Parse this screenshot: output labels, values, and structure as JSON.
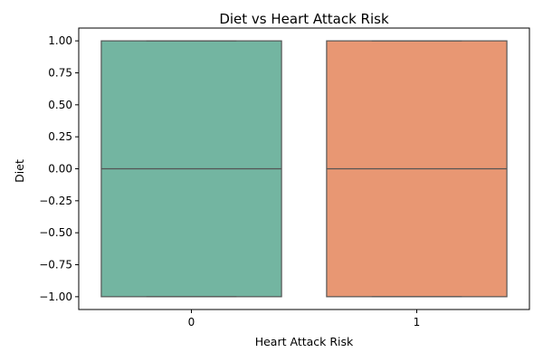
{
  "chart_data": {
    "type": "box",
    "title": "Diet vs Heart Attack Risk",
    "xlabel": "Heart Attack Risk",
    "ylabel": "Diet",
    "categories": [
      "0",
      "1"
    ],
    "ylim": [
      -1.1,
      1.1
    ],
    "yticks": [
      -1.0,
      -0.75,
      -0.5,
      -0.25,
      0.0,
      0.25,
      0.5,
      0.75,
      1.0
    ],
    "ytick_labels": [
      "−1.00",
      "−0.75",
      "−0.50",
      "−0.25",
      "0.00",
      "0.25",
      "0.50",
      "0.75",
      "1.00"
    ],
    "boxes": [
      {
        "category": "0",
        "min": -1.0,
        "q1": -1.0,
        "median": 0.0,
        "q3": 1.0,
        "max": 1.0,
        "color": "#73b5a1"
      },
      {
        "category": "1",
        "min": -1.0,
        "q1": -1.0,
        "median": 0.0,
        "q3": 1.0,
        "max": 1.0,
        "color": "#e89773"
      }
    ],
    "line_color": "#555555",
    "grid": false
  }
}
